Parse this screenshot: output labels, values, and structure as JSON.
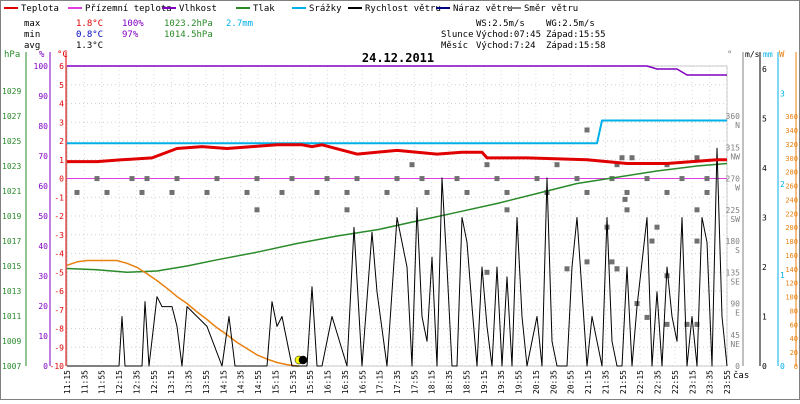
{
  "legend": [
    {
      "label": "Teplota",
      "color": "#e00000"
    },
    {
      "label": "Přízemní teplota",
      "color": "#e040e0"
    },
    {
      "label": "Vlhkost",
      "color": "#8000c0"
    },
    {
      "label": "Tlak",
      "color": "#2a8a2a"
    },
    {
      "label": "Srážky",
      "color": "#00b0e8"
    },
    {
      "label": "Rychlost větru",
      "color": "#000000"
    },
    {
      "label": "Náraz větru",
      "color": "#000080"
    },
    {
      "label": "Směr větru",
      "color": "#808080"
    }
  ],
  "stats": {
    "max_label": "max",
    "max_temp": "1.8°C",
    "max_hum": "100%",
    "max_press": "1023.2hPa",
    "max_rain": "2.7mm",
    "min_label": "min",
    "min_temp": "0.8°C",
    "min_hum": "97%",
    "min_press": "1014.5hPa",
    "avg_label": "avg",
    "avg_temp": "1.3°C"
  },
  "sun": {
    "ws": "WS:2.5m/s",
    "wg": "WG:2.5m/s",
    "slunce": "Slunce",
    "slunce_rise": "Východ:07:45",
    "slunce_set": "Západ:15:55",
    "mesic": "Měsíc",
    "mesic_rise": "Východ:7:24",
    "mesic_set": "Západ:15:58"
  },
  "title": "24.12.2011",
  "units": {
    "hpa": "hPa",
    "pct": "%",
    "degc": "°C",
    "deg": "°",
    "ms": "m/s",
    "mm": "mm",
    "w": "W",
    "time": "čas"
  },
  "chart_data": {
    "type": "line",
    "title": "24.12.2011",
    "x_ticks": [
      "11:15",
      "11:35",
      "11:55",
      "12:15",
      "12:35",
      "12:55",
      "13:15",
      "13:35",
      "13:55",
      "14:15",
      "14:35",
      "14:55",
      "15:15",
      "15:35",
      "15:55",
      "16:15",
      "16:35",
      "16:55",
      "17:15",
      "17:35",
      "17:55",
      "18:15",
      "18:35",
      "18:55",
      "19:15",
      "19:35",
      "19:55",
      "20:15",
      "20:35",
      "20:55",
      "21:15",
      "21:35",
      "21:55",
      "22:15",
      "22:35",
      "22:55",
      "23:15",
      "23:35",
      "23:55"
    ],
    "axes": {
      "pressure_hPa": {
        "ticks": [
          "1007",
          "1009",
          "1011",
          "1013",
          "1015",
          "1017",
          "1019",
          "1021",
          "1023",
          "1025",
          "1027",
          "1029",
          "hPa"
        ]
      },
      "humidity_pct": {
        "ticks": [
          "0",
          "10",
          "20",
          "30",
          "40",
          "50",
          "60",
          "70",
          "80",
          "90",
          "100"
        ]
      },
      "temperature_C": {
        "ticks": [
          "-10",
          "-9",
          "-8",
          "-7",
          "-6",
          "-5",
          "-4",
          "-3",
          "-2",
          "-1",
          "0",
          "1",
          "2",
          "3",
          "4",
          "5",
          "6"
        ]
      },
      "wind_dir_deg": {
        "ticks": [
          "0",
          "45",
          "90",
          "135",
          "180",
          "225",
          "270",
          "315",
          "360"
        ],
        "labels": [
          "",
          "NE",
          "E",
          "SE",
          "S",
          "SW",
          "W",
          "NW",
          "N"
        ]
      },
      "wind_ms": {
        "ticks": [
          "0",
          "1",
          "2",
          "3",
          "4",
          "5",
          "6"
        ]
      },
      "rain_mm": {
        "ticks": [
          "0",
          "1",
          "2",
          "3"
        ]
      },
      "solar_W": {
        "ticks": [
          "0",
          "20",
          "40",
          "60",
          "80",
          "100",
          "120",
          "140",
          "160",
          "180",
          "200",
          "220",
          "240",
          "260",
          "280",
          "300",
          "320",
          "340",
          "360"
        ]
      }
    },
    "series": [
      {
        "name": "Teplota",
        "color": "#e00000",
        "t": [
          0,
          30,
          55,
          85,
          110,
          135,
          160,
          185,
          210,
          235,
          245,
          255,
          290,
          330,
          370,
          395,
          415,
          420,
          460,
          520,
          560,
          600,
          650,
          660
        ],
        "values": [
          0.9,
          0.9,
          1.0,
          1.1,
          1.6,
          1.7,
          1.6,
          1.7,
          1.8,
          1.8,
          1.7,
          1.8,
          1.3,
          1.5,
          1.3,
          1.4,
          1.4,
          1.1,
          1.1,
          1.0,
          0.8,
          0.8,
          1.0,
          1.0
        ]
      },
      {
        "name": "Přízemní teplota",
        "color": "#e040e0",
        "t": [
          0,
          660
        ],
        "values": [
          0,
          0
        ]
      },
      {
        "name": "Vlhkost",
        "color": "#8000c0",
        "t": [
          0,
          580,
          590,
          610,
          620,
          660
        ],
        "values": [
          100,
          100,
          99,
          99,
          97,
          97
        ]
      },
      {
        "name": "Tlak",
        "color": "#2a8a2a",
        "t": [
          0,
          30,
          60,
          90,
          120,
          150,
          190,
          230,
          270,
          310,
          350,
          390,
          430,
          470,
          510,
          550,
          590,
          630,
          660
        ],
        "values": [
          1014.8,
          1014.7,
          1014.5,
          1014.6,
          1015.0,
          1015.5,
          1016.1,
          1016.8,
          1017.4,
          1017.9,
          1018.6,
          1019.3,
          1020.0,
          1020.8,
          1021.6,
          1022.1,
          1022.6,
          1023.0,
          1023.2
        ]
      },
      {
        "name": "Srážky",
        "color": "#00b0e8",
        "t": [
          0,
          530,
          535,
          660
        ],
        "values": [
          2.45,
          2.45,
          2.7,
          2.7
        ]
      },
      {
        "name": "Rychlost větru",
        "color": "#000000",
        "t": [
          0,
          52,
          55,
          58,
          62,
          75,
          78,
          82,
          90,
          95,
          100,
          105,
          110,
          115,
          120,
          140,
          155,
          162,
          168,
          200,
          205,
          210,
          215,
          225,
          240,
          245,
          250,
          255,
          265,
          280,
          287,
          295,
          305,
          310,
          320,
          330,
          340,
          345,
          350,
          355,
          360,
          365,
          370,
          375,
          380,
          385,
          390,
          395,
          400,
          405,
          410,
          415,
          420,
          425,
          430,
          435,
          440,
          445,
          450,
          455,
          460,
          470,
          475,
          480,
          485,
          490,
          500,
          505,
          510,
          520,
          525,
          530,
          535,
          540,
          545,
          550,
          555,
          560,
          565,
          570,
          580,
          585,
          590,
          595,
          600,
          605,
          610,
          615,
          620,
          625,
          630,
          635,
          640,
          645,
          650,
          655,
          660
        ],
        "values": [
          0,
          0,
          1.0,
          0,
          0,
          0,
          1.3,
          0,
          1.4,
          1.2,
          1.2,
          1.2,
          0.8,
          0,
          1.2,
          0.8,
          0,
          1.0,
          0,
          0,
          1.3,
          0.8,
          1.0,
          0,
          0,
          1.6,
          0,
          0,
          1.0,
          0,
          2.8,
          0,
          2.7,
          1.5,
          0,
          3.0,
          2.0,
          0,
          3.2,
          1.0,
          0.5,
          2.2,
          0,
          3.8,
          2.0,
          0,
          0,
          3.0,
          2.5,
          1.2,
          0,
          2.0,
          0.8,
          0,
          2.0,
          0,
          1.8,
          0,
          3.0,
          1.0,
          0,
          1.0,
          0,
          3.8,
          0.5,
          0,
          0,
          2.0,
          3.0,
          0,
          1.0,
          0.5,
          0,
          3.0,
          0.5,
          0,
          0,
          2.0,
          0,
          1.2,
          3.0,
          0,
          1.5,
          0,
          2.0,
          1.0,
          0.5,
          3.0,
          0,
          1.0,
          0,
          3.0,
          2.5,
          0,
          4.4,
          1.0,
          0
        ]
      },
      {
        "name": "Náraz větru",
        "color": "#000080",
        "t": [
          0,
          660
        ],
        "values": [
          0,
          0
        ]
      },
      {
        "name": "Směr větru",
        "color": "#808080",
        "points": [
          [
            30,
            270
          ],
          [
            65,
            270
          ],
          [
            80,
            270
          ],
          [
            110,
            270
          ],
          [
            150,
            270
          ],
          [
            190,
            270
          ],
          [
            225,
            270
          ],
          [
            260,
            270
          ],
          [
            290,
            270
          ],
          [
            330,
            270
          ],
          [
            355,
            270
          ],
          [
            390,
            270
          ],
          [
            430,
            270
          ],
          [
            470,
            270
          ],
          [
            510,
            270
          ],
          [
            545,
            270
          ],
          [
            580,
            270
          ],
          [
            615,
            270
          ],
          [
            640,
            270
          ],
          [
            10,
            250
          ],
          [
            40,
            250
          ],
          [
            75,
            250
          ],
          [
            105,
            250
          ],
          [
            140,
            250
          ],
          [
            180,
            250
          ],
          [
            215,
            250
          ],
          [
            250,
            250
          ],
          [
            280,
            250
          ],
          [
            320,
            250
          ],
          [
            360,
            250
          ],
          [
            400,
            250
          ],
          [
            440,
            250
          ],
          [
            480,
            250
          ],
          [
            520,
            250
          ],
          [
            560,
            250
          ],
          [
            600,
            250
          ],
          [
            640,
            250
          ],
          [
            190,
            225
          ],
          [
            280,
            225
          ],
          [
            440,
            225
          ],
          [
            560,
            225
          ],
          [
            630,
            225
          ],
          [
            345,
            290
          ],
          [
            420,
            290
          ],
          [
            490,
            290
          ],
          [
            550,
            290
          ],
          [
            555,
            300
          ],
          [
            565,
            300
          ],
          [
            600,
            290
          ],
          [
            630,
            300
          ],
          [
            520,
            340
          ],
          [
            540,
            200
          ],
          [
            585,
            180
          ],
          [
            590,
            200
          ],
          [
            630,
            180
          ],
          [
            545,
            150
          ],
          [
            600,
            130
          ],
          [
            500,
            140
          ],
          [
            520,
            150
          ],
          [
            550,
            140
          ],
          [
            570,
            90
          ],
          [
            580,
            70
          ],
          [
            600,
            60
          ],
          [
            420,
            135
          ],
          [
            550,
            140
          ],
          [
            558,
            240
          ],
          [
            620,
            60
          ],
          [
            630,
            60
          ]
        ]
      },
      {
        "name": "Solar",
        "color": "#e88010",
        "t": [
          0,
          10,
          20,
          30,
          40,
          50,
          60,
          70,
          80,
          90,
          100,
          110,
          120,
          130,
          140,
          150,
          160,
          170,
          180,
          190,
          200,
          210,
          220,
          230,
          232
        ],
        "values": [
          145,
          150,
          152,
          152,
          152,
          152,
          148,
          142,
          133,
          123,
          112,
          100,
          90,
          78,
          67,
          55,
          45,
          34,
          25,
          16,
          10,
          5,
          2,
          0,
          0
        ]
      }
    ],
    "markers": [
      {
        "t": 232,
        "color": "#ffff00"
      },
      {
        "t": 236,
        "color": "#000000"
      }
    ]
  }
}
